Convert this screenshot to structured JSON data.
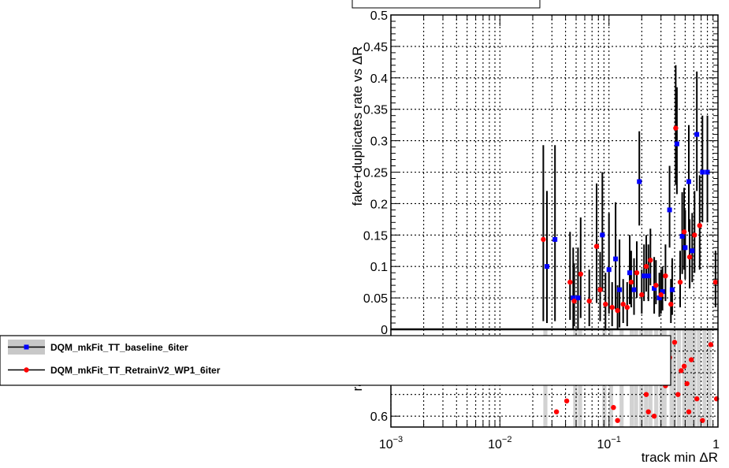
{
  "chart_data": {
    "type": "scatter",
    "xscale": "log",
    "xlim": [
      0.001,
      1
    ],
    "xlabel": "track min ΔR",
    "xticks": [
      {
        "base": "10",
        "exp": "−3",
        "value": 0.001
      },
      {
        "base": "10",
        "exp": "−2",
        "value": 0.01
      },
      {
        "base": "10",
        "exp": "−1",
        "value": 0.1
      },
      {
        "base": "1",
        "exp": "",
        "value": 1
      }
    ],
    "upper": {
      "ylabel": "fake+duplicates rate vs ΔR",
      "ylim": [
        0,
        0.5
      ],
      "yticks": [
        "0",
        "0.05",
        "0.1",
        "0.15",
        "0.2",
        "0.25",
        "0.3",
        "0.35",
        "0.4",
        "0.45",
        "0.5"
      ],
      "grid": true
    },
    "lower": {
      "ylabel": "ratio",
      "ylim": [
        0.55,
        1.0
      ],
      "yticks": [
        "0.6"
      ],
      "grid": true
    },
    "legend": {
      "placement": "bottom-left",
      "entries": [
        {
          "name": "DQM_mkFit_TT_baseline_6iter",
          "color": "#0000ff"
        },
        {
          "name": "DQM_mkFit_TT_RetrainV2_WP1_6iter",
          "color": "#ff0000"
        }
      ]
    },
    "series": [
      {
        "name": "DQM_mkFit_TT_baseline_6iter",
        "color": "#0000ff",
        "points": [
          [
            0.027,
            0.1,
            0.09,
            0.12
          ],
          [
            0.032,
            0.143,
            0.13,
            0.15
          ],
          [
            0.047,
            0.05,
            0.05,
            0.08
          ],
          [
            0.052,
            0.05,
            0.05,
            0.08
          ],
          [
            0.087,
            0.15,
            0.09,
            0.1
          ],
          [
            0.1,
            0.095,
            0.07,
            0.09
          ],
          [
            0.115,
            0.112,
            0.08,
            0.09
          ],
          [
            0.125,
            0.063,
            0.06,
            0.08
          ],
          [
            0.155,
            0.09,
            0.05,
            0.06
          ],
          [
            0.17,
            0.063,
            0.04,
            0.05
          ],
          [
            0.19,
            0.235,
            0.07,
            0.08
          ],
          [
            0.21,
            0.085,
            0.04,
            0.05
          ],
          [
            0.23,
            0.085,
            0.04,
            0.05
          ],
          [
            0.26,
            0.065,
            0.04,
            0.05
          ],
          [
            0.29,
            0.05,
            0.03,
            0.04
          ],
          [
            0.31,
            0.06,
            0.03,
            0.04
          ],
          [
            0.36,
            0.19,
            0.06,
            0.07
          ],
          [
            0.38,
            0.063,
            0.04,
            0.05
          ],
          [
            0.42,
            0.295,
            0.08,
            0.09
          ],
          [
            0.47,
            0.148,
            0.06,
            0.07
          ],
          [
            0.5,
            0.13,
            0.05,
            0.06
          ],
          [
            0.54,
            0.235,
            0.08,
            0.09
          ],
          [
            0.58,
            0.125,
            0.05,
            0.06
          ],
          [
            0.64,
            0.31,
            0.09,
            0.1
          ],
          [
            0.72,
            0.25,
            0.08,
            0.09
          ],
          [
            0.8,
            0.25,
            0.08,
            0.09
          ]
        ]
      },
      {
        "name": "DQM_mkFit_TT_RetrainV2_WP1_6iter",
        "color": "#ff0000",
        "points": [
          [
            0.025,
            0.143,
            0.13,
            0.15
          ],
          [
            0.044,
            0.075,
            0.06,
            0.08
          ],
          [
            0.048,
            0.045,
            0.04,
            0.06
          ],
          [
            0.055,
            0.088,
            0.07,
            0.09
          ],
          [
            0.066,
            0.045,
            0.04,
            0.05
          ],
          [
            0.077,
            0.132,
            0.09,
            0.1
          ],
          [
            0.083,
            0.063,
            0.05,
            0.06
          ],
          [
            0.093,
            0.04,
            0.04,
            0.05
          ],
          [
            0.107,
            0.035,
            0.03,
            0.04
          ],
          [
            0.12,
            0.03,
            0.03,
            0.04
          ],
          [
            0.135,
            0.04,
            0.03,
            0.04
          ],
          [
            0.147,
            0.035,
            0.03,
            0.04
          ],
          [
            0.16,
            0.075,
            0.04,
            0.05
          ],
          [
            0.18,
            0.09,
            0.04,
            0.05
          ],
          [
            0.2,
            0.055,
            0.03,
            0.04
          ],
          [
            0.22,
            0.1,
            0.04,
            0.05
          ],
          [
            0.24,
            0.11,
            0.04,
            0.05
          ],
          [
            0.27,
            0.07,
            0.03,
            0.04
          ],
          [
            0.3,
            0.055,
            0.03,
            0.04
          ],
          [
            0.33,
            0.085,
            0.04,
            0.05
          ],
          [
            0.37,
            0.04,
            0.03,
            0.04
          ],
          [
            0.41,
            0.32,
            0.09,
            0.1
          ],
          [
            0.45,
            0.075,
            0.04,
            0.05
          ],
          [
            0.49,
            0.155,
            0.06,
            0.07
          ],
          [
            0.55,
            0.115,
            0.05,
            0.06
          ],
          [
            0.61,
            0.15,
            0.06,
            0.07
          ],
          [
            0.68,
            0.165,
            0.07,
            0.08
          ],
          [
            0.95,
            0.075,
            0.04,
            0.05
          ]
        ]
      }
    ],
    "ratio_points": [
      [
        0.033,
        0.62
      ],
      [
        0.041,
        0.67
      ],
      [
        0.063,
        0.77
      ],
      [
        0.09,
        0.95
      ],
      [
        0.11,
        0.64
      ],
      [
        0.12,
        0.58
      ],
      [
        0.14,
        0.92
      ],
      [
        0.16,
        0.85
      ],
      [
        0.2,
        0.81
      ],
      [
        0.22,
        0.7
      ],
      [
        0.23,
        0.62
      ],
      [
        0.26,
        0.6
      ],
      [
        0.3,
        0.88
      ],
      [
        0.33,
        0.74
      ],
      [
        0.36,
        0.87
      ],
      [
        0.4,
        0.94
      ],
      [
        0.43,
        0.7
      ],
      [
        0.46,
        0.81
      ],
      [
        0.49,
        0.83
      ],
      [
        0.52,
        0.75
      ],
      [
        0.54,
        0.62
      ],
      [
        0.57,
        0.86
      ],
      [
        0.64,
        0.68
      ],
      [
        0.72,
        0.58
      ],
      [
        0.86,
        0.93
      ],
      [
        0.97,
        0.68
      ]
    ],
    "ratio_bands": [
      [
        0.025,
        0.025
      ],
      [
        0.047,
        0.046
      ],
      [
        0.052,
        0.03
      ],
      [
        0.087,
        0.07
      ],
      [
        0.1,
        0.1
      ],
      [
        0.125,
        0.09
      ],
      [
        0.155,
        0.08
      ],
      [
        0.17,
        0.09
      ],
      [
        0.19,
        0.05
      ],
      [
        0.21,
        0.07
      ],
      [
        0.23,
        0.07
      ],
      [
        0.26,
        0.1
      ],
      [
        0.29,
        0.07
      ],
      [
        0.31,
        0.09
      ],
      [
        0.36,
        0.06
      ],
      [
        0.38,
        0.08
      ],
      [
        0.42,
        0.05
      ],
      [
        0.47,
        0.06
      ],
      [
        0.5,
        0.09
      ],
      [
        0.54,
        0.05
      ],
      [
        0.58,
        0.07
      ],
      [
        0.64,
        0.04
      ],
      [
        0.72,
        0.06
      ],
      [
        0.8,
        0.06
      ]
    ]
  }
}
